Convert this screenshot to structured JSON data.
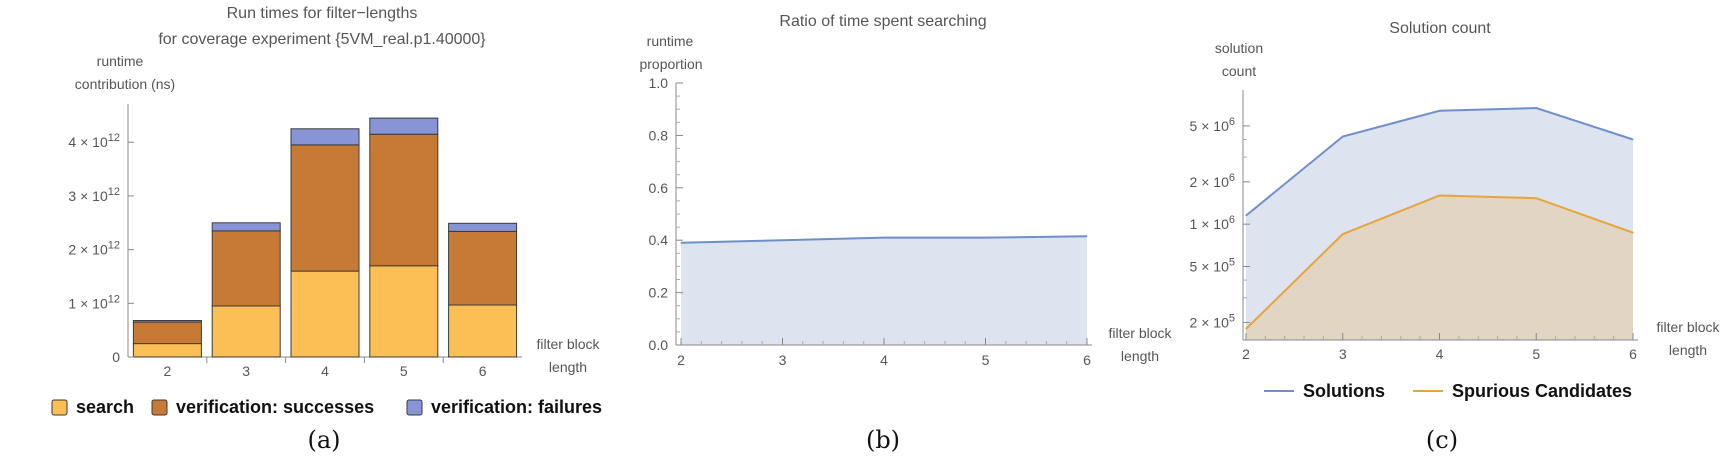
{
  "chart_data": [
    {
      "type": "bar",
      "stacked": true,
      "title": "Run times for filter−lengths",
      "subtitle": "for coverage experiment {5VM_real.p1.40000}",
      "ylabel": [
        "runtime",
        "contribution (ns)"
      ],
      "xlabel": [
        "filter block",
        "length"
      ],
      "categories": [
        "2",
        "3",
        "4",
        "5",
        "6"
      ],
      "series": [
        {
          "name": "search",
          "color": "#fbbf55",
          "values": [
            250000000000.0,
            950000000000.0,
            1600000000000.0,
            1700000000000.0,
            970000000000.0
          ]
        },
        {
          "name": "verification: successes",
          "color": "#c77a35",
          "values": [
            400000000000.0,
            1400000000000.0,
            2350000000000.0,
            2450000000000.0,
            1370000000000.0
          ]
        },
        {
          "name": "verification: failures",
          "color": "#8795d6",
          "values": [
            30000000000.0,
            150000000000.0,
            300000000000.0,
            300000000000.0,
            150000000000.0
          ]
        }
      ],
      "ylim": [
        0,
        4600000000000.0
      ],
      "yticks": [
        {
          "value": 0,
          "mant": "0",
          "exp": ""
        },
        {
          "value": 1000000000000.0,
          "mant": "1 × 10",
          "exp": "12"
        },
        {
          "value": 2000000000000.0,
          "mant": "2 × 10",
          "exp": "12"
        },
        {
          "value": 3000000000000.0,
          "mant": "3 × 10",
          "exp": "12"
        },
        {
          "value": 4000000000000.0,
          "mant": "4 × 10",
          "exp": "12"
        }
      ],
      "legend": "bottom",
      "caption": "(a)"
    },
    {
      "type": "area",
      "title": "Ratio of time spent searching",
      "ylabel": [
        "runtime",
        "proportion"
      ],
      "xlabel": [
        "filter block",
        "length"
      ],
      "x": [
        2,
        3,
        4,
        5,
        6
      ],
      "series": [
        {
          "color": "#6f8fc9",
          "fill": "#dde3ef",
          "values": [
            0.39,
            0.4,
            0.41,
            0.41,
            0.415
          ]
        }
      ],
      "xlim": [
        2,
        6
      ],
      "ylim": [
        0,
        1.0
      ],
      "xticks": [
        "2",
        "3",
        "4",
        "5",
        "6"
      ],
      "yticks": [
        "0.0",
        "0.2",
        "0.4",
        "0.6",
        "0.8",
        "1.0"
      ],
      "caption": "(b)"
    },
    {
      "type": "area",
      "yscale": "log",
      "title": "Solution count",
      "ylabel": [
        "solution",
        "count"
      ],
      "xlabel": [
        "filter block",
        "length"
      ],
      "x": [
        2,
        3,
        4,
        5,
        6
      ],
      "series": [
        {
          "name": "Solutions",
          "color": "#6f8fc9",
          "fill": "#dde3ef",
          "values": [
            1150000,
            4200000,
            6400000,
            6700000,
            4000000
          ]
        },
        {
          "name": "Spurious Candidates",
          "color": "#e8a33a",
          "fill": "#e2d5c3",
          "values": [
            180000,
            850000,
            1600000,
            1530000,
            870000
          ]
        }
      ],
      "xlim": [
        2,
        6
      ],
      "ylim": [
        150000,
        9000000
      ],
      "xticks": [
        "2",
        "3",
        "4",
        "5",
        "6"
      ],
      "yticks": [
        {
          "value": 200000,
          "mant": "2 × 10",
          "exp": "5"
        },
        {
          "value": 500000,
          "mant": "5 × 10",
          "exp": "5"
        },
        {
          "value": 1000000,
          "mant": "1 × 10",
          "exp": "6"
        },
        {
          "value": 2000000,
          "mant": "2 × 10",
          "exp": "6"
        },
        {
          "value": 5000000,
          "mant": "5 × 10",
          "exp": "6"
        }
      ],
      "legend": "bottom",
      "caption": "(c)"
    }
  ]
}
